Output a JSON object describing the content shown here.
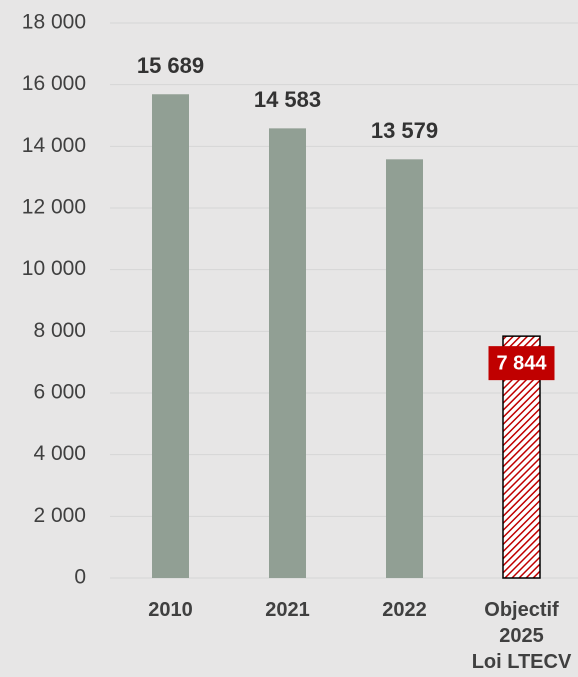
{
  "chart_data": {
    "type": "bar",
    "categories": [
      "2010",
      "2021",
      "2022",
      "Objectif\n2025\nLoi LTECV"
    ],
    "values": [
      15689,
      14583,
      13579,
      7844
    ],
    "value_labels": [
      "15 689",
      "14 583",
      "13 579",
      "7 844"
    ],
    "colors": [
      "#919f94",
      "#919f94",
      "#919f94",
      "#c00000"
    ],
    "hatched": [
      false,
      false,
      false,
      true
    ],
    "ylim": [
      0,
      18000
    ],
    "yticks": [
      0,
      {
        "value": 2000,
        "label": "2 000"
      },
      {
        "value": 4000,
        "label": "4 000"
      },
      {
        "value": 6000,
        "label": "6 000"
      },
      {
        "value": 8000,
        "label": "8 000"
      },
      {
        "value": 10000,
        "label": "10 000"
      },
      {
        "value": 12000,
        "label": "12 000"
      },
      {
        "value": 14000,
        "label": "14 000"
      },
      {
        "value": 16000,
        "label": "16 000"
      },
      {
        "value": 18000,
        "label": "18 000"
      }
    ],
    "grid": true
  }
}
